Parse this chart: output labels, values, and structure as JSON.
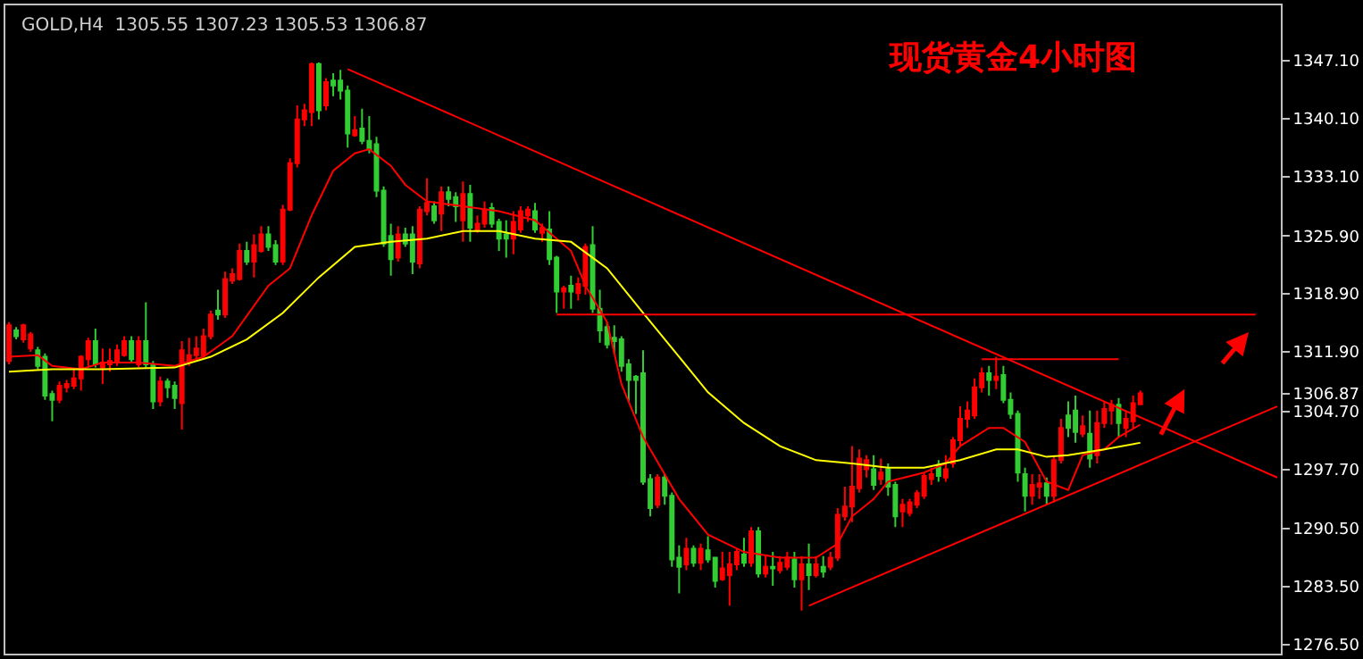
{
  "chart_data": {
    "type": "candlestick",
    "title": "现货黄金4小时图",
    "annotations": [
      "GOLD,H4  1305.55 1307.23 1305.53 1306.87"
    ],
    "categories": [
      null,
      null,
      null,
      null,
      null,
      null,
      null,
      null,
      null,
      null,
      null,
      null,
      null,
      null,
      null,
      null,
      null,
      null,
      null,
      null,
      null,
      null,
      null,
      null,
      null,
      null,
      null,
      null,
      null,
      null,
      null,
      null,
      null,
      null,
      null,
      null,
      null,
      null,
      null,
      null,
      null,
      null,
      null,
      null,
      null,
      null,
      null,
      null,
      null,
      null,
      null,
      null,
      null,
      null,
      null,
      null,
      null,
      null,
      null,
      null,
      null,
      null,
      null,
      null,
      null,
      null,
      null,
      null,
      null,
      null,
      null,
      null,
      null,
      null,
      null,
      null,
      null,
      null,
      null,
      null,
      null,
      null,
      null,
      null,
      null,
      null,
      null,
      null,
      null,
      null,
      null,
      null,
      null,
      null,
      null,
      null,
      null,
      null,
      null,
      null,
      null,
      null,
      null,
      null,
      null,
      null,
      null,
      null,
      null,
      null,
      null,
      null,
      null,
      null,
      null,
      null,
      null,
      null,
      null,
      null,
      null,
      null,
      null,
      null,
      null,
      null,
      null,
      null,
      null,
      null,
      null,
      null,
      null,
      null,
      null,
      null,
      null,
      null,
      null,
      null,
      null,
      null,
      null,
      null,
      null,
      null,
      null,
      null,
      null,
      null,
      null,
      null,
      null,
      null,
      null,
      null,
      null,
      null,
      null,
      null,
      null,
      null,
      null,
      null,
      null,
      null,
      null,
      null,
      null,
      null,
      null,
      null,
      null,
      null,
      null,
      null,
      null
    ],
    "ohlc": [
      [
        1310.8,
        1315.5,
        1310.4,
        1315.1
      ],
      [
        1314.5,
        1314.9,
        1313.4,
        1313.8
      ],
      [
        1313.4,
        1315.3,
        1313.0,
        1315.1
      ],
      [
        1312.3,
        1314.3,
        1311.9,
        1314.0
      ],
      [
        1312.1,
        1312.5,
        1309.8,
        1310.2
      ],
      [
        1311.3,
        1311.7,
        1306.1,
        1306.6
      ],
      [
        1306.8,
        1307.2,
        1303.5,
        1306.1
      ],
      [
        1306.1,
        1308.3,
        1305.7,
        1307.8
      ],
      [
        1307.6,
        1308.5,
        1307.0,
        1308.0
      ],
      [
        1307.8,
        1309.8,
        1307.4,
        1308.7
      ],
      [
        1308.7,
        1311.5,
        1307.2,
        1311.3
      ],
      [
        1311.0,
        1313.6,
        1310.2,
        1313.2
      ],
      [
        1313.2,
        1314.7,
        1310.0,
        1310.4
      ],
      [
        1310.0,
        1312.3,
        1308.0,
        1310.6
      ],
      [
        1310.4,
        1312.3,
        1309.5,
        1310.8
      ],
      [
        1310.6,
        1312.8,
        1310.2,
        1312.1
      ],
      [
        1311.5,
        1313.8,
        1311.3,
        1313.2
      ],
      [
        1313.2,
        1313.8,
        1310.6,
        1311.0
      ],
      [
        1310.4,
        1313.8,
        1310.0,
        1313.2
      ],
      [
        1313.2,
        1317.9,
        1310.0,
        1310.4
      ],
      [
        1310.4,
        1310.8,
        1305.0,
        1305.9
      ],
      [
        1305.9,
        1308.9,
        1305.3,
        1308.3
      ],
      [
        1308.3,
        1308.7,
        1306.3,
        1307.6
      ],
      [
        1307.8,
        1308.3,
        1305.0,
        1306.3
      ],
      [
        1305.7,
        1313.2,
        1302.5,
        1312.1
      ],
      [
        1310.8,
        1313.6,
        1310.2,
        1311.5
      ],
      [
        1311.5,
        1313.8,
        1310.8,
        1312.3
      ],
      [
        1311.5,
        1314.7,
        1311.3,
        1313.8
      ],
      [
        1313.8,
        1316.9,
        1313.4,
        1316.4
      ],
      [
        1316.9,
        1319.4,
        1315.8,
        1316.4
      ],
      [
        1316.4,
        1321.6,
        1316.0,
        1320.7
      ],
      [
        1320.5,
        1322.0,
        1320.1,
        1321.3
      ],
      [
        1320.7,
        1325.0,
        1320.5,
        1324.1
      ],
      [
        1324.1,
        1325.2,
        1322.4,
        1322.8
      ],
      [
        1322.8,
        1326.1,
        1320.9,
        1324.8
      ],
      [
        1324.1,
        1327.1,
        1323.9,
        1326.1
      ],
      [
        1326.1,
        1327.1,
        1324.1,
        1324.6
      ],
      [
        1324.8,
        1325.4,
        1322.4,
        1322.8
      ],
      [
        1322.8,
        1329.7,
        1322.4,
        1329.1
      ],
      [
        1329.1,
        1335.3,
        1328.9,
        1334.7
      ],
      [
        1334.7,
        1341.7,
        1334.2,
        1340.0
      ],
      [
        1340.0,
        1341.9,
        1339.2,
        1341.1
      ],
      [
        1340.9,
        1346.9,
        1339.2,
        1346.7
      ],
      [
        1346.7,
        1346.9,
        1340.0,
        1341.1
      ],
      [
        1341.7,
        1345.0,
        1341.1,
        1344.5
      ],
      [
        1344.7,
        1345.6,
        1342.8,
        1344.1
      ],
      [
        1344.7,
        1346.0,
        1342.4,
        1343.5
      ],
      [
        1343.5,
        1344.1,
        1336.6,
        1338.3
      ],
      [
        1338.1,
        1340.4,
        1337.9,
        1338.7
      ],
      [
        1338.9,
        1341.3,
        1337.0,
        1337.4
      ],
      [
        1337.4,
        1340.4,
        1335.9,
        1336.4
      ],
      [
        1337.0,
        1337.9,
        1330.6,
        1331.4
      ],
      [
        1331.4,
        1331.9,
        1324.6,
        1325.0
      ],
      [
        1325.9,
        1327.4,
        1321.1,
        1323.1
      ],
      [
        1323.3,
        1327.1,
        1322.8,
        1326.1
      ],
      [
        1326.1,
        1326.9,
        1324.6,
        1325.0
      ],
      [
        1326.1,
        1327.1,
        1321.3,
        1322.8
      ],
      [
        1322.6,
        1329.5,
        1322.0,
        1329.1
      ],
      [
        1328.9,
        1332.9,
        1328.4,
        1329.9
      ],
      [
        1329.5,
        1330.1,
        1327.4,
        1327.8
      ],
      [
        1328.6,
        1331.9,
        1326.5,
        1331.2
      ],
      [
        1331.2,
        1331.9,
        1329.5,
        1330.4
      ],
      [
        1330.6,
        1331.2,
        1327.6,
        1329.5
      ],
      [
        1327.8,
        1332.5,
        1325.2,
        1331.0
      ],
      [
        1331.0,
        1332.1,
        1325.2,
        1326.9
      ],
      [
        1326.7,
        1328.4,
        1326.3,
        1327.4
      ],
      [
        1327.4,
        1330.1,
        1326.9,
        1329.1
      ],
      [
        1329.3,
        1329.9,
        1326.9,
        1327.4
      ],
      [
        1327.6,
        1328.0,
        1324.1,
        1325.6
      ],
      [
        1326.1,
        1327.8,
        1323.3,
        1325.6
      ],
      [
        1325.6,
        1328.9,
        1323.7,
        1327.6
      ],
      [
        1326.7,
        1329.5,
        1326.3,
        1328.9
      ],
      [
        1328.4,
        1329.5,
        1327.6,
        1329.1
      ],
      [
        1328.9,
        1329.9,
        1326.3,
        1326.7
      ],
      [
        1326.3,
        1327.4,
        1325.2,
        1326.9
      ],
      [
        1326.7,
        1328.9,
        1322.4,
        1323.1
      ],
      [
        1323.3,
        1323.5,
        1316.6,
        1319.2
      ],
      [
        1319.2,
        1319.9,
        1317.1,
        1319.6
      ],
      [
        1319.9,
        1321.1,
        1317.1,
        1319.2
      ],
      [
        1319.0,
        1320.9,
        1318.1,
        1320.1
      ],
      [
        1319.9,
        1325.0,
        1318.8,
        1324.6
      ],
      [
        1324.8,
        1327.1,
        1316.6,
        1317.1
      ],
      [
        1317.1,
        1319.4,
        1313.0,
        1314.5
      ],
      [
        1314.9,
        1315.5,
        1312.3,
        1312.8
      ],
      [
        1313.6,
        1315.1,
        1311.7,
        1313.2
      ],
      [
        1313.4,
        1313.8,
        1309.5,
        1310.2
      ],
      [
        1310.4,
        1311.0,
        1305.9,
        1308.5
      ],
      [
        1308.9,
        1309.1,
        1304.4,
        1308.5
      ],
      [
        1309.3,
        1312.1,
        1295.8,
        1296.2
      ],
      [
        1296.5,
        1297.1,
        1292.0,
        1293.0
      ],
      [
        1293.4,
        1297.1,
        1293.0,
        1296.7
      ],
      [
        1296.7,
        1297.1,
        1293.4,
        1294.5
      ],
      [
        1294.5,
        1294.9,
        1285.9,
        1286.8
      ],
      [
        1287.0,
        1288.5,
        1282.7,
        1285.9
      ],
      [
        1286.2,
        1289.4,
        1285.5,
        1288.1
      ],
      [
        1288.1,
        1288.5,
        1285.9,
        1286.4
      ],
      [
        1286.4,
        1288.7,
        1285.5,
        1288.1
      ],
      [
        1287.9,
        1289.6,
        1286.4,
        1286.8
      ],
      [
        1287.0,
        1287.0,
        1283.4,
        1284.2
      ],
      [
        1284.4,
        1287.7,
        1284.2,
        1285.7
      ],
      [
        1284.9,
        1287.7,
        1281.2,
        1286.2
      ],
      [
        1286.2,
        1288.1,
        1285.5,
        1287.7
      ],
      [
        1287.4,
        1289.4,
        1285.9,
        1286.4
      ],
      [
        1286.4,
        1290.7,
        1285.9,
        1290.2
      ],
      [
        1290.2,
        1290.7,
        1284.6,
        1285.1
      ],
      [
        1285.1,
        1287.2,
        1284.6,
        1285.9
      ],
      [
        1285.9,
        1287.7,
        1283.6,
        1285.7
      ],
      [
        1285.5,
        1287.2,
        1285.1,
        1286.4
      ],
      [
        1285.9,
        1287.7,
        1285.5,
        1287.0
      ],
      [
        1286.8,
        1287.7,
        1283.4,
        1284.4
      ],
      [
        1284.4,
        1287.2,
        1280.6,
        1286.2
      ],
      [
        1286.2,
        1288.7,
        1283.1,
        1284.9
      ],
      [
        1284.9,
        1287.2,
        1284.6,
        1286.2
      ],
      [
        1285.9,
        1287.2,
        1284.6,
        1285.3
      ],
      [
        1285.9,
        1287.7,
        1285.5,
        1287.0
      ],
      [
        1287.0,
        1293.0,
        1286.6,
        1292.2
      ],
      [
        1292.0,
        1295.6,
        1291.5,
        1293.2
      ],
      [
        1293.2,
        1300.5,
        1291.3,
        1295.6
      ],
      [
        1295.4,
        1300.1,
        1294.9,
        1299.0
      ],
      [
        1297.7,
        1299.4,
        1296.7,
        1298.8
      ],
      [
        1297.7,
        1299.4,
        1295.2,
        1295.8
      ],
      [
        1296.5,
        1299.0,
        1295.8,
        1297.3
      ],
      [
        1297.7,
        1298.4,
        1294.5,
        1295.6
      ],
      [
        1295.8,
        1296.2,
        1290.7,
        1292.0
      ],
      [
        1292.6,
        1294.1,
        1290.7,
        1293.4
      ],
      [
        1292.4,
        1294.1,
        1292.0,
        1293.7
      ],
      [
        1293.4,
        1295.2,
        1293.0,
        1294.8
      ],
      [
        1294.5,
        1297.3,
        1294.1,
        1296.9
      ],
      [
        1296.5,
        1297.9,
        1295.8,
        1297.1
      ],
      [
        1298.2,
        1298.8,
        1296.2,
        1296.9
      ],
      [
        1296.7,
        1299.4,
        1296.2,
        1297.7
      ],
      [
        1298.4,
        1301.6,
        1297.9,
        1301.2
      ],
      [
        1301.2,
        1305.3,
        1300.5,
        1303.8
      ],
      [
        1303.8,
        1305.9,
        1302.7,
        1304.8
      ],
      [
        1304.2,
        1308.7,
        1303.8,
        1307.6
      ],
      [
        1307.6,
        1310.0,
        1307.0,
        1309.3
      ],
      [
        1309.3,
        1310.2,
        1306.6,
        1308.5
      ],
      [
        1308.5,
        1311.3,
        1307.4,
        1308.9
      ],
      [
        1309.1,
        1310.2,
        1305.7,
        1306.1
      ],
      [
        1306.1,
        1307.0,
        1303.8,
        1304.4
      ],
      [
        1304.4,
        1304.8,
        1296.2,
        1297.3
      ],
      [
        1297.1,
        1297.9,
        1292.6,
        1294.5
      ],
      [
        1294.5,
        1297.1,
        1293.4,
        1295.8
      ],
      [
        1295.6,
        1297.1,
        1294.1,
        1296.0
      ],
      [
        1296.0,
        1296.7,
        1293.4,
        1294.5
      ],
      [
        1294.5,
        1299.4,
        1293.7,
        1298.8
      ],
      [
        1298.8,
        1303.8,
        1298.4,
        1302.7
      ],
      [
        1304.2,
        1305.9,
        1301.6,
        1302.7
      ],
      [
        1304.8,
        1306.6,
        1300.9,
        1302.2
      ],
      [
        1302.0,
        1304.2,
        1301.6,
        1302.9
      ],
      [
        1302.0,
        1304.8,
        1297.9,
        1299.0
      ],
      [
        1299.4,
        1304.8,
        1298.4,
        1303.3
      ],
      [
        1303.3,
        1305.9,
        1302.7,
        1305.0
      ],
      [
        1304.8,
        1306.1,
        1303.1,
        1305.5
      ],
      [
        1305.5,
        1306.3,
        1301.6,
        1303.3
      ],
      [
        1302.7,
        1304.8,
        1301.6,
        1303.8
      ],
      [
        1303.5,
        1306.6,
        1302.7,
        1305.7
      ],
      [
        1305.55,
        1307.23,
        1305.53,
        1306.87
      ],
      null,
      null,
      null,
      null,
      null,
      null,
      null,
      null,
      null,
      null,
      null,
      null,
      null,
      null,
      null,
      null,
      null,
      null,
      null
    ],
    "colors": [
      "#ff0000",
      "#32cd32",
      "#ff0000",
      "#ff0000",
      "#32cd32",
      "#32cd32",
      "#32cd32",
      "#ff0000",
      "#ff0000",
      "#ff0000",
      "#ff0000",
      "#ff0000",
      "#32cd32",
      "#ff0000",
      "#ff0000",
      "#ff0000",
      "#ff0000",
      "#32cd32",
      "#ff0000",
      "#32cd32",
      "#32cd32",
      "#ff0000",
      "#32cd32",
      "#32cd32",
      "#ff0000",
      "#ff0000",
      "#ff0000",
      "#ff0000",
      "#ff0000",
      "#32cd32",
      "#ff0000",
      "#ff0000",
      "#ff0000",
      "#32cd32",
      "#ff0000",
      "#ff0000",
      "#32cd32",
      "#32cd32",
      "#ff0000",
      "#ff0000",
      "#ff0000",
      "#ff0000",
      "#ff0000",
      "#32cd32",
      "#ff0000",
      "#32cd32",
      "#32cd32",
      "#32cd32",
      "#ff0000",
      "#32cd32",
      "#32cd32",
      "#32cd32",
      "#32cd32",
      "#32cd32",
      "#ff0000",
      "#32cd32",
      "#32cd32",
      "#ff0000",
      "#ff0000",
      "#32cd32",
      "#ff0000",
      "#32cd32",
      "#32cd32",
      "#ff0000",
      "#32cd32",
      "#ff0000",
      "#ff0000",
      "#32cd32",
      "#32cd32",
      "#32cd32",
      "#ff0000",
      "#ff0000",
      "#ff0000",
      "#32cd32",
      "#ff0000",
      "#32cd32",
      "#32cd32",
      "#ff0000",
      "#32cd32",
      "#ff0000",
      "#ff0000",
      "#32cd32",
      "#32cd32",
      "#32cd32",
      "#32cd32",
      "#32cd32",
      "#32cd32",
      "#32cd32",
      "#32cd32",
      "#32cd32",
      "#ff0000",
      "#32cd32",
      "#32cd32",
      "#32cd32",
      "#ff0000",
      "#32cd32",
      "#ff0000",
      "#32cd32",
      "#32cd32",
      "#ff0000",
      "#ff0000",
      "#ff0000",
      "#32cd32",
      "#ff0000",
      "#32cd32",
      "#ff0000",
      "#32cd32",
      "#ff0000",
      "#ff0000",
      "#32cd32",
      "#ff0000",
      "#32cd32",
      "#ff0000",
      "#32cd32",
      "#ff0000",
      "#ff0000",
      "#ff0000",
      "#ff0000",
      "#ff0000",
      "#ff0000",
      "#32cd32",
      "#ff0000",
      "#32cd32",
      "#32cd32",
      "#ff0000",
      "#ff0000",
      "#ff0000",
      "#ff0000",
      "#ff0000",
      "#32cd32",
      "#ff0000",
      "#ff0000",
      "#ff0000",
      "#ff0000",
      "#ff0000",
      "#ff0000",
      "#32cd32",
      "#ff0000",
      "#32cd32",
      "#32cd32",
      "#32cd32",
      "#32cd32",
      "#ff0000",
      "#ff0000",
      "#32cd32",
      "#ff0000",
      "#ff0000",
      "#32cd32",
      "#32cd32",
      "#ff0000",
      "#32cd32",
      "#ff0000",
      "#ff0000",
      "#ff0000",
      "#32cd32",
      "#ff0000",
      "#ff0000",
      "#ff0000",
      null,
      null,
      null,
      null,
      null,
      null,
      null,
      null,
      null,
      null,
      null,
      null,
      null,
      null,
      null,
      null,
      null,
      null,
      null
    ],
    "series": [
      {
        "type": "line",
        "color": "#ff0000",
        "values": [
          1311.3,
          null,
          null,
          null,
          1311.5,
          null,
          1310.2,
          null,
          null,
          null,
          1309.8,
          null,
          null,
          1310.6,
          null,
          null,
          null,
          null,
          1310.6,
          null,
          null,
          null,
          null,
          1310.2,
          null,
          null,
          null,
          1311.3,
          null,
          null,
          null,
          1313.8,
          null,
          null,
          null,
          null,
          1319.9,
          null,
          null,
          1322.0,
          null,
          null,
          1328.4,
          null,
          null,
          1333.8,
          null,
          null,
          1335.9,
          null,
          1336.4,
          null,
          null,
          1334.4,
          null,
          1332.1,
          null,
          null,
          1330.1,
          null,
          null,
          null,
          null,
          1329.5,
          null,
          null,
          null,
          null,
          1328.9,
          null,
          null,
          null,
          null,
          1327.8,
          null,
          null,
          null,
          null,
          1324.1,
          null,
          1319.9,
          null,
          null,
          1315.5,
          null,
          1308.0,
          null,
          null,
          1301.6,
          null,
          null,
          null,
          null,
          1294.1,
          null,
          null,
          null,
          1289.8,
          null,
          null,
          null,
          null,
          1287.7,
          null,
          null,
          null,
          null,
          1287.0,
          null,
          null,
          null,
          null,
          1287.0,
          null,
          null,
          1288.7,
          null,
          1292.0,
          null,
          null,
          1294.1,
          null,
          1296.2,
          null,
          null,
          null,
          null,
          1297.3,
          null,
          null,
          1298.4,
          null,
          1300.5,
          null,
          null,
          null,
          1302.7,
          null,
          1302.7,
          null,
          null,
          1301.0,
          null,
          null,
          1296.2,
          null,
          null,
          1295.2,
          null,
          1299.4,
          null,
          null,
          1300.1,
          null,
          1301.6,
          null,
          null,
          1303.1,
          null,
          null,
          null,
          null,
          null,
          null,
          null,
          null,
          null,
          null,
          null,
          null,
          null,
          null,
          null,
          null,
          null,
          null,
          null
        ]
      },
      {
        "type": "line",
        "color": "#ffff00",
        "values": [
          1309.5,
          null,
          null,
          null,
          null,
          null,
          1309.8,
          null,
          null,
          null,
          null,
          null,
          null,
          1309.8,
          null,
          null,
          null,
          null,
          null,
          null,
          null,
          null,
          null,
          1310.0,
          null,
          null,
          null,
          null,
          1311.3,
          null,
          null,
          null,
          null,
          1313.4,
          null,
          null,
          null,
          null,
          1316.6,
          null,
          null,
          null,
          null,
          1320.9,
          null,
          null,
          null,
          null,
          1324.6,
          null,
          null,
          null,
          null,
          1325.2,
          null,
          null,
          null,
          null,
          1325.6,
          null,
          null,
          null,
          null,
          1326.5,
          null,
          null,
          null,
          null,
          1326.5,
          null,
          null,
          null,
          null,
          1325.6,
          null,
          null,
          null,
          null,
          1325.2,
          null,
          null,
          null,
          null,
          1322.0,
          null,
          null,
          null,
          null,
          1316.6,
          null,
          null,
          null,
          null,
          1311.3,
          null,
          null,
          null,
          1307.0,
          null,
          null,
          null,
          null,
          1303.3,
          null,
          null,
          null,
          null,
          1300.5,
          null,
          null,
          null,
          null,
          1298.8,
          null,
          null,
          null,
          null,
          1298.4,
          null,
          null,
          null,
          null,
          1297.9,
          null,
          null,
          null,
          null,
          1297.9,
          null,
          null,
          null,
          null,
          1298.8,
          null,
          null,
          null,
          null,
          1300.1,
          null,
          null,
          1300.1,
          null,
          null,
          null,
          1299.2,
          null,
          null,
          1299.4,
          null,
          null,
          null,
          null,
          1300.1,
          null,
          null,
          null,
          null,
          1300.9,
          null,
          null,
          null,
          null,
          null,
          null,
          null,
          null,
          null,
          null,
          null,
          null,
          null,
          null,
          null,
          null,
          null,
          null,
          null
        ]
      },
      {
        "type": "line",
        "color": "#ff0000",
        "values": [
          null,
          null,
          null,
          null,
          null,
          null,
          null,
          null,
          null,
          null,
          null,
          null,
          null,
          null,
          null,
          null,
          null,
          null,
          null,
          null,
          null,
          null,
          null,
          null,
          null,
          null,
          null,
          null,
          null,
          null,
          null,
          null,
          null,
          null,
          null,
          null,
          null,
          null,
          null,
          null,
          null,
          null,
          null,
          null,
          null,
          null,
          null,
          1346.1,
          null,
          null,
          null,
          null,
          null,
          null,
          null,
          null,
          null,
          null,
          null,
          null,
          null,
          null,
          null,
          null,
          null,
          null,
          null,
          null,
          null,
          null,
          null,
          null,
          null,
          null,
          null,
          null,
          null,
          null,
          null,
          null,
          null,
          null,
          null,
          null,
          null,
          null,
          null,
          null,
          null,
          null,
          null,
          null,
          null,
          null,
          null,
          null,
          null,
          null,
          null,
          null,
          null,
          null,
          null,
          null,
          null,
          null,
          null,
          null,
          null,
          null,
          null,
          null,
          null,
          null,
          null,
          null,
          null,
          null,
          null,
          null,
          null,
          null,
          null,
          null,
          null,
          null,
          null,
          null,
          null,
          null,
          null,
          null,
          null,
          null,
          null,
          null,
          null,
          null,
          null,
          null,
          null,
          null,
          null,
          null,
          null,
          null,
          null,
          null,
          null,
          null,
          null,
          null,
          null,
          null,
          null,
          null,
          null,
          null,
          null,
          null,
          null,
          null,
          null,
          null,
          null,
          null,
          null,
          null,
          null,
          null,
          null,
          null,
          null,
          null,
          null,
          null,
          1296.7
        ]
      },
      {
        "type": "line",
        "color": "#ff0000",
        "values": [
          null,
          null,
          null,
          null,
          null,
          null,
          null,
          null,
          null,
          null,
          null,
          null,
          null,
          null,
          null,
          null,
          null,
          null,
          null,
          null,
          null,
          null,
          null,
          null,
          null,
          null,
          null,
          null,
          null,
          null,
          null,
          null,
          null,
          null,
          null,
          null,
          null,
          null,
          null,
          null,
          null,
          null,
          null,
          null,
          null,
          null,
          null,
          null,
          null,
          null,
          null,
          null,
          null,
          null,
          null,
          null,
          null,
          null,
          null,
          null,
          null,
          null,
          null,
          null,
          null,
          null,
          null,
          null,
          null,
          null,
          null,
          null,
          null,
          null,
          null,
          null,
          null,
          null,
          null,
          null,
          null,
          null,
          null,
          null,
          null,
          null,
          null,
          null,
          null,
          null,
          null,
          null,
          null,
          null,
          null,
          null,
          null,
          null,
          null,
          null,
          null,
          null,
          null,
          null,
          null,
          null,
          null,
          null,
          null,
          null,
          null,
          1281.2,
          null,
          null,
          null,
          null,
          null,
          null,
          null,
          null,
          null,
          null,
          null,
          null,
          null,
          null,
          null,
          null,
          null,
          null,
          null,
          null,
          null,
          null,
          null,
          null,
          null,
          null,
          null,
          null,
          null,
          null,
          null,
          null,
          null,
          null,
          null,
          null,
          null,
          null,
          null,
          null,
          null,
          null,
          null,
          null,
          null,
          null,
          null,
          null,
          null,
          null,
          null,
          null,
          null,
          null,
          null,
          null,
          null,
          null,
          null,
          null,
          null,
          null,
          null,
          null,
          1305.3
        ]
      },
      {
        "type": "line",
        "color": "#ff0000",
        "values": [
          null,
          null,
          null,
          null,
          null,
          null,
          null,
          null,
          null,
          null,
          null,
          null,
          null,
          null,
          null,
          null,
          null,
          null,
          null,
          null,
          null,
          null,
          null,
          null,
          null,
          null,
          null,
          null,
          null,
          null,
          null,
          null,
          null,
          null,
          null,
          null,
          null,
          null,
          null,
          null,
          null,
          null,
          null,
          null,
          null,
          null,
          null,
          null,
          null,
          null,
          null,
          null,
          null,
          null,
          null,
          null,
          null,
          null,
          null,
          null,
          null,
          null,
          null,
          null,
          null,
          null,
          null,
          null,
          null,
          null,
          null,
          null,
          null,
          null,
          null,
          null,
          1316.4,
          null,
          null,
          null,
          null,
          null,
          null,
          null,
          null,
          null,
          null,
          null,
          null,
          null,
          null,
          null,
          null,
          null,
          null,
          null,
          null,
          null,
          null,
          null,
          null,
          null,
          null,
          null,
          null,
          null,
          null,
          null,
          null,
          null,
          null,
          null,
          null,
          null,
          null,
          null,
          null,
          null,
          null,
          null,
          null,
          null,
          null,
          null,
          null,
          null,
          null,
          null,
          null,
          null,
          null,
          null,
          null,
          null,
          null,
          null,
          null,
          null,
          null,
          null,
          null,
          null,
          null,
          null,
          null,
          null,
          null,
          null,
          null,
          null,
          null,
          null,
          null,
          null,
          null,
          null,
          null,
          null,
          null,
          null,
          null,
          null,
          null,
          null,
          null,
          null,
          null,
          null,
          null,
          null,
          null,
          null,
          null,
          1316.4,
          null,
          null,
          null
        ]
      },
      {
        "type": "line",
        "color": "#ff0000",
        "values": [
          null,
          null,
          null,
          null,
          null,
          null,
          null,
          null,
          null,
          null,
          null,
          null,
          null,
          null,
          null,
          null,
          null,
          null,
          null,
          null,
          null,
          null,
          null,
          null,
          null,
          null,
          null,
          null,
          null,
          null,
          null,
          null,
          null,
          null,
          null,
          null,
          null,
          null,
          null,
          null,
          null,
          null,
          null,
          null,
          null,
          null,
          null,
          null,
          null,
          null,
          null,
          null,
          null,
          null,
          null,
          null,
          null,
          null,
          null,
          null,
          null,
          null,
          null,
          null,
          null,
          null,
          null,
          null,
          null,
          null,
          null,
          null,
          null,
          null,
          null,
          null,
          null,
          null,
          null,
          null,
          null,
          null,
          null,
          null,
          null,
          null,
          null,
          null,
          null,
          null,
          null,
          null,
          null,
          null,
          null,
          null,
          null,
          null,
          null,
          null,
          null,
          null,
          null,
          null,
          null,
          null,
          null,
          null,
          null,
          null,
          null,
          null,
          null,
          null,
          null,
          null,
          null,
          null,
          null,
          null,
          null,
          null,
          null,
          null,
          null,
          null,
          null,
          null,
          null,
          null,
          null,
          null,
          null,
          null,
          null,
          1311.0,
          null,
          null,
          null,
          null,
          null,
          null,
          null,
          null,
          null,
          null,
          null,
          null,
          null,
          null,
          null,
          null,
          null,
          null,
          1311.0,
          null,
          null,
          null,
          null,
          null,
          null,
          null,
          null,
          null,
          null,
          null,
          null,
          null,
          null,
          null,
          null,
          null,
          null,
          null,
          null,
          null,
          null
        ]
      }
    ],
    "ylim": [
      1275.4,
      1353.8
    ],
    "yticks": [
      {
        "value": 1276.5,
        "label": "1276.50"
      },
      {
        "value": 1283.5,
        "label": "1283.50"
      },
      {
        "value": 1290.5,
        "label": "1290.50"
      },
      {
        "value": 1297.7,
        "label": "1297.70"
      },
      {
        "value": 1304.7,
        "label": "1304.70"
      },
      {
        "value": 1306.87,
        "label": "1306.87"
      },
      {
        "value": 1311.9,
        "label": "1311.90"
      },
      {
        "value": 1318.9,
        "label": "1318.90"
      },
      {
        "value": 1325.9,
        "label": "1325.90"
      },
      {
        "value": 1333.1,
        "label": "1333.10"
      },
      {
        "value": 1340.1,
        "label": "1340.10"
      },
      {
        "value": 1347.1,
        "label": "1347.10"
      }
    ],
    "tick_labels": "y",
    "grid": false
  }
}
